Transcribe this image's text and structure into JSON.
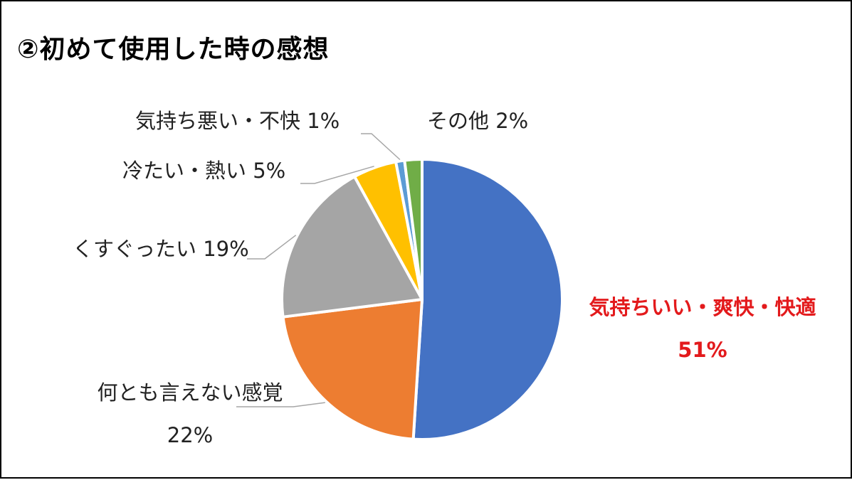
{
  "title": "②初めて使用した時の感想",
  "chart_data": {
    "type": "pie",
    "title": "②初めて使用した時の感想",
    "slices": [
      {
        "label": "気持ちいい・爽快・快適",
        "value_label": "51%",
        "value": 51,
        "color": "#4472c4",
        "highlight": true
      },
      {
        "label": "何とも言えない感覚",
        "value_label": "22%",
        "value": 22,
        "color": "#ed7d31"
      },
      {
        "label": "くすぐったい",
        "value_label": "19%",
        "value": 19,
        "color": "#a5a5a5"
      },
      {
        "label": "冷たい・熱い",
        "value_label": "5%",
        "value": 5,
        "color": "#ffc000"
      },
      {
        "label": "気持ち悪い・不快",
        "value_label": "1%",
        "value": 1,
        "color": "#5b9bd5"
      },
      {
        "label": "その他",
        "value_label": "2%",
        "value": 2,
        "color": "#70ad47"
      }
    ],
    "start": "12 o'clock",
    "direction": "clockwise",
    "label_color_highlight": "#e31a1c"
  }
}
